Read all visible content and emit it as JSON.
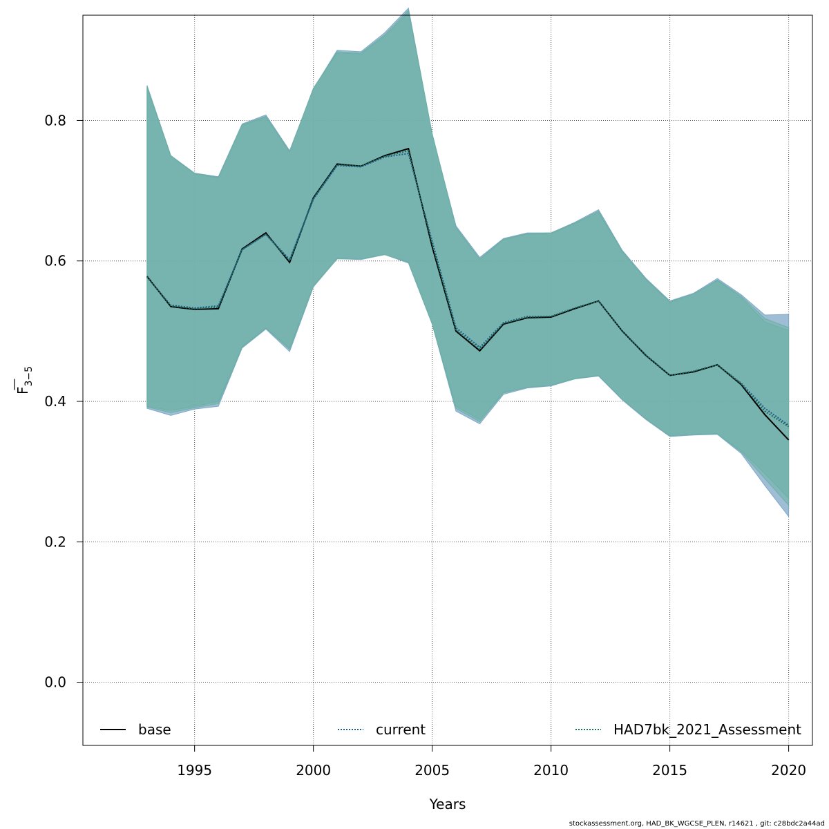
{
  "chart_data": {
    "type": "line",
    "xlabel": "Years",
    "ylabel_main": "F",
    "ylabel_sub": "3−5",
    "xlim": [
      1990.3,
      2021.0
    ],
    "ylim": [
      -0.09,
      0.95
    ],
    "xticks": [
      1995,
      2000,
      2005,
      2010,
      2015,
      2020
    ],
    "yticks": [
      0.0,
      0.2,
      0.4,
      0.6,
      0.8
    ],
    "ytick_labels": [
      "0.0",
      "0.2",
      "0.4",
      "0.6",
      "0.8"
    ],
    "grid": true,
    "legend_position": "bottom",
    "x": [
      1993,
      1994,
      1995,
      1996,
      1997,
      1998,
      1999,
      2000,
      2001,
      2002,
      2003,
      2004,
      2005,
      2006,
      2007,
      2008,
      2009,
      2010,
      2011,
      2012,
      2013,
      2014,
      2015,
      2016,
      2017,
      2018,
      2019,
      2020
    ],
    "series": [
      {
        "name": "base",
        "color": "#000000",
        "linestyle": "solid",
        "band_color": "#7fa8c8",
        "values": [
          0.578,
          0.535,
          0.531,
          0.532,
          0.617,
          0.64,
          0.598,
          0.69,
          0.738,
          0.735,
          0.75,
          0.76,
          0.62,
          0.5,
          0.472,
          0.51,
          0.519,
          0.52,
          0.532,
          0.543,
          0.5,
          0.465,
          0.437,
          0.442,
          0.452,
          0.424,
          0.381,
          0.345
        ],
        "upper": [
          0.85,
          0.75,
          0.725,
          0.72,
          0.795,
          0.808,
          0.757,
          0.845,
          0.9,
          0.898,
          0.925,
          0.96,
          0.78,
          0.65,
          0.605,
          0.632,
          0.64,
          0.64,
          0.655,
          0.673,
          0.615,
          0.575,
          0.543,
          0.554,
          0.575,
          0.552,
          0.523,
          0.524
        ],
        "lower": [
          0.39,
          0.38,
          0.389,
          0.393,
          0.476,
          0.503,
          0.471,
          0.563,
          0.603,
          0.602,
          0.609,
          0.597,
          0.51,
          0.386,
          0.368,
          0.41,
          0.419,
          0.422,
          0.432,
          0.436,
          0.402,
          0.374,
          0.35,
          0.352,
          0.353,
          0.326,
          0.28,
          0.236
        ]
      },
      {
        "name": "current",
        "color": "#1f5a8c",
        "linestyle": "dotted",
        "band_color": "#6db0a6",
        "values": [
          0.577,
          0.537,
          0.533,
          0.536,
          0.616,
          0.638,
          0.602,
          0.688,
          0.736,
          0.734,
          0.748,
          0.753,
          0.628,
          0.505,
          0.477,
          0.512,
          0.521,
          0.521,
          0.533,
          0.543,
          0.5,
          0.466,
          0.437,
          0.443,
          0.452,
          0.426,
          0.39,
          0.366
        ],
        "upper": [
          0.846,
          0.749,
          0.724,
          0.718,
          0.793,
          0.805,
          0.755,
          0.846,
          0.896,
          0.895,
          0.92,
          0.954,
          0.781,
          0.647,
          0.602,
          0.63,
          0.638,
          0.639,
          0.653,
          0.669,
          0.613,
          0.573,
          0.541,
          0.553,
          0.572,
          0.548,
          0.513,
          0.501
        ],
        "lower": [
          0.393,
          0.387,
          0.393,
          0.4,
          0.478,
          0.505,
          0.476,
          0.565,
          0.604,
          0.603,
          0.609,
          0.599,
          0.511,
          0.393,
          0.374,
          0.413,
          0.42,
          0.423,
          0.433,
          0.437,
          0.403,
          0.375,
          0.351,
          0.353,
          0.354,
          0.33,
          0.297,
          0.262
        ]
      },
      {
        "name": "HAD7bk_2021_Assessment",
        "color": "#1f6b5a",
        "linestyle": "dotted",
        "band_color": "#6db0a6",
        "values": [
          0.577,
          0.536,
          0.532,
          0.534,
          0.616,
          0.638,
          0.6,
          0.689,
          0.737,
          0.735,
          0.749,
          0.757,
          0.624,
          0.502,
          0.474,
          0.511,
          0.52,
          0.521,
          0.533,
          0.543,
          0.5,
          0.465,
          0.437,
          0.443,
          0.452,
          0.425,
          0.386,
          0.364
        ],
        "upper": [
          0.848,
          0.75,
          0.725,
          0.719,
          0.794,
          0.806,
          0.756,
          0.846,
          0.898,
          0.896,
          0.922,
          0.957,
          0.781,
          0.648,
          0.603,
          0.631,
          0.639,
          0.64,
          0.654,
          0.671,
          0.614,
          0.574,
          0.542,
          0.553,
          0.573,
          0.55,
          0.518,
          0.505
        ],
        "lower": [
          0.392,
          0.384,
          0.391,
          0.397,
          0.477,
          0.504,
          0.474,
          0.564,
          0.603,
          0.603,
          0.609,
          0.598,
          0.51,
          0.39,
          0.371,
          0.412,
          0.42,
          0.423,
          0.432,
          0.437,
          0.403,
          0.375,
          0.351,
          0.353,
          0.354,
          0.328,
          0.29,
          0.252
        ]
      }
    ]
  },
  "footer": "stockassessment.org, HAD_BK_WGCSE_PLEN, r14621 , git: c28bdc2a44ad"
}
